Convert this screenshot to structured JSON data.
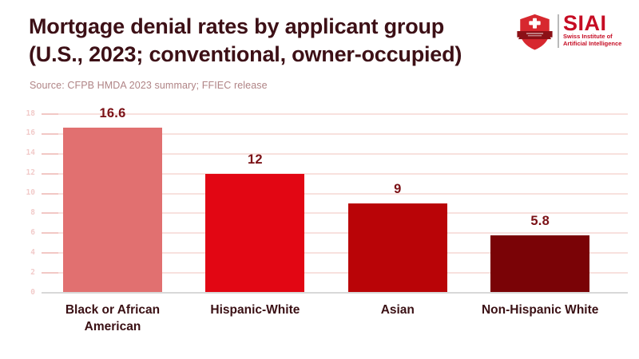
{
  "header": {
    "title_line1": "Mortgage denial rates by applicant group",
    "title_line2": "(U.S., 2023; conventional, owner-occupied)",
    "source": "Source: CFPB HMDA 2023 summary; FFIEC release"
  },
  "logo": {
    "acronym": "SIAI",
    "subtitle_line1": "Swiss Institute of",
    "subtitle_line2": "Artificial Intelligence",
    "shield_red": "#d7282f",
    "banner_dark": "#8c1016",
    "text_red": "#c60d24"
  },
  "theme": {
    "background": "#ffffff",
    "title_color": "#3d1016",
    "source_color": "#b08486"
  },
  "chart_data": {
    "type": "bar",
    "title": "Mortgage denial rates by applicant group (U.S., 2023; conventional, owner-occupied)",
    "source_note": "Source: CFPB HMDA 2023 summary; FFIEC release",
    "categories": [
      "Black or African American",
      "Hispanic-White",
      "Asian",
      "Non-Hispanic White"
    ],
    "values": [
      16.6,
      12,
      9,
      5.8
    ],
    "value_labels": [
      "16.6",
      "12",
      "9",
      "5.8"
    ],
    "bar_colors": [
      "#e17070",
      "#e20613",
      "#b90407",
      "#7a0306"
    ],
    "ylim": [
      0,
      18
    ],
    "yticks": [
      0,
      2,
      4,
      6,
      8,
      10,
      12,
      14,
      16,
      18
    ],
    "grid": true,
    "legend": "none",
    "colors": {
      "value_label": "#7b1116",
      "category_label": "#3a1014",
      "tick_label": "#f2cbca",
      "gridline": "#f8e1de",
      "tick_mark": "#f2c8c5",
      "baseline": "#d8d8d8"
    }
  }
}
